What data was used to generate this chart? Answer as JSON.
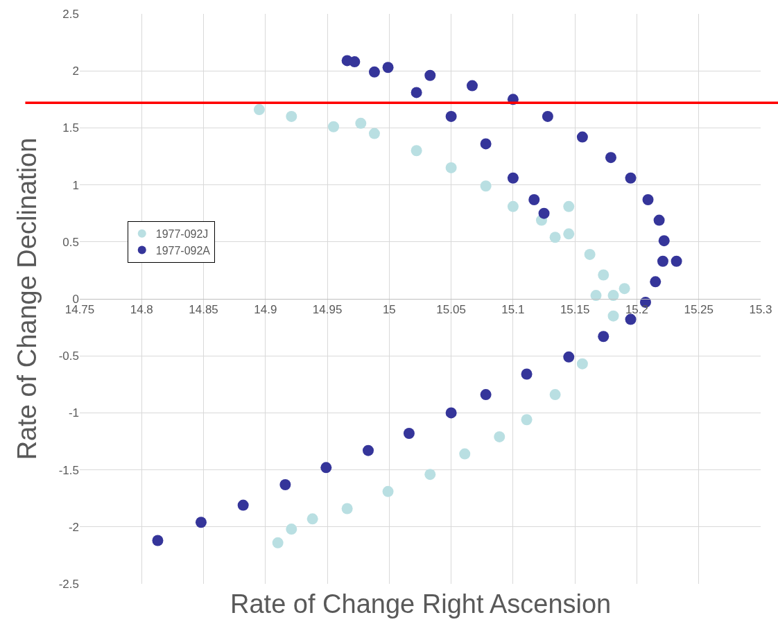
{
  "chart_data": {
    "type": "scatter",
    "xlabel": "Rate of Change Right Ascension",
    "ylabel": "Rate of Change Declination",
    "xlim": [
      14.75,
      15.3
    ],
    "xticks": [
      14.75,
      14.8,
      14.85,
      14.9,
      14.95,
      15,
      15.05,
      15.1,
      15.15,
      15.2,
      15.25,
      15.3
    ],
    "ylim": [
      -2.5,
      2.5
    ],
    "yticks": [
      -2.5,
      -2,
      -1.5,
      -1,
      -0.5,
      0,
      0.5,
      1,
      1.5,
      2,
      2.5
    ],
    "grid": true,
    "legend": "left",
    "marker": "circle",
    "ref_lines": [
      {
        "axis": "y",
        "value": 1.72,
        "color": "#ff0000"
      }
    ],
    "series": [
      {
        "name": "1977-092J",
        "color": "#b9dfe2",
        "x": [
          14.895,
          14.921,
          14.955,
          14.977,
          14.988,
          15.022,
          15.05,
          15.078,
          15.1,
          15.123,
          15.145,
          15.134,
          15.145,
          15.162,
          15.173,
          15.167,
          15.19,
          15.181,
          15.181,
          15.173,
          15.156,
          15.134,
          15.111,
          15.089,
          15.061,
          15.033,
          14.999,
          14.966,
          14.938,
          14.921,
          14.91
        ],
        "values": [
          1.66,
          1.6,
          1.51,
          1.54,
          1.45,
          1.3,
          1.15,
          0.99,
          0.81,
          0.69,
          0.57,
          0.54,
          0.81,
          0.39,
          0.21,
          0.03,
          0.09,
          0.03,
          -0.15,
          null,
          -0.57,
          -0.84,
          -1.06,
          -1.21,
          -1.36,
          -1.54,
          -1.69,
          -1.84,
          -1.93,
          -2.02,
          -2.14
        ]
      },
      {
        "name": "1977-092A",
        "color": "#35359a",
        "x": [
          14.813,
          14.848,
          14.882,
          14.916,
          14.949,
          14.983,
          15.016,
          15.05,
          15.078,
          15.111,
          15.145,
          15.173,
          15.195,
          15.207,
          15.215,
          15.221,
          15.232,
          15.222,
          15.218,
          15.209,
          15.195,
          15.179,
          15.156,
          15.128,
          15.1,
          15.067,
          15.033,
          14.999,
          14.972,
          14.966,
          14.988,
          15.022,
          15.05,
          15.078,
          15.1,
          15.117,
          15.125
        ],
        "values": [
          -2.12,
          -1.96,
          -1.81,
          -1.63,
          -1.48,
          -1.33,
          -1.18,
          -1,
          -0.84,
          -0.66,
          -0.51,
          -0.33,
          -0.18,
          -0.03,
          0.15,
          0.33,
          0.33,
          0.51,
          0.69,
          0.87,
          1.06,
          1.24,
          1.42,
          1.6,
          1.75,
          1.87,
          1.96,
          2.03,
          2.08,
          2.09,
          1.99,
          1.81,
          1.6,
          1.36,
          1.06,
          0.87,
          0.75
        ]
      }
    ]
  }
}
